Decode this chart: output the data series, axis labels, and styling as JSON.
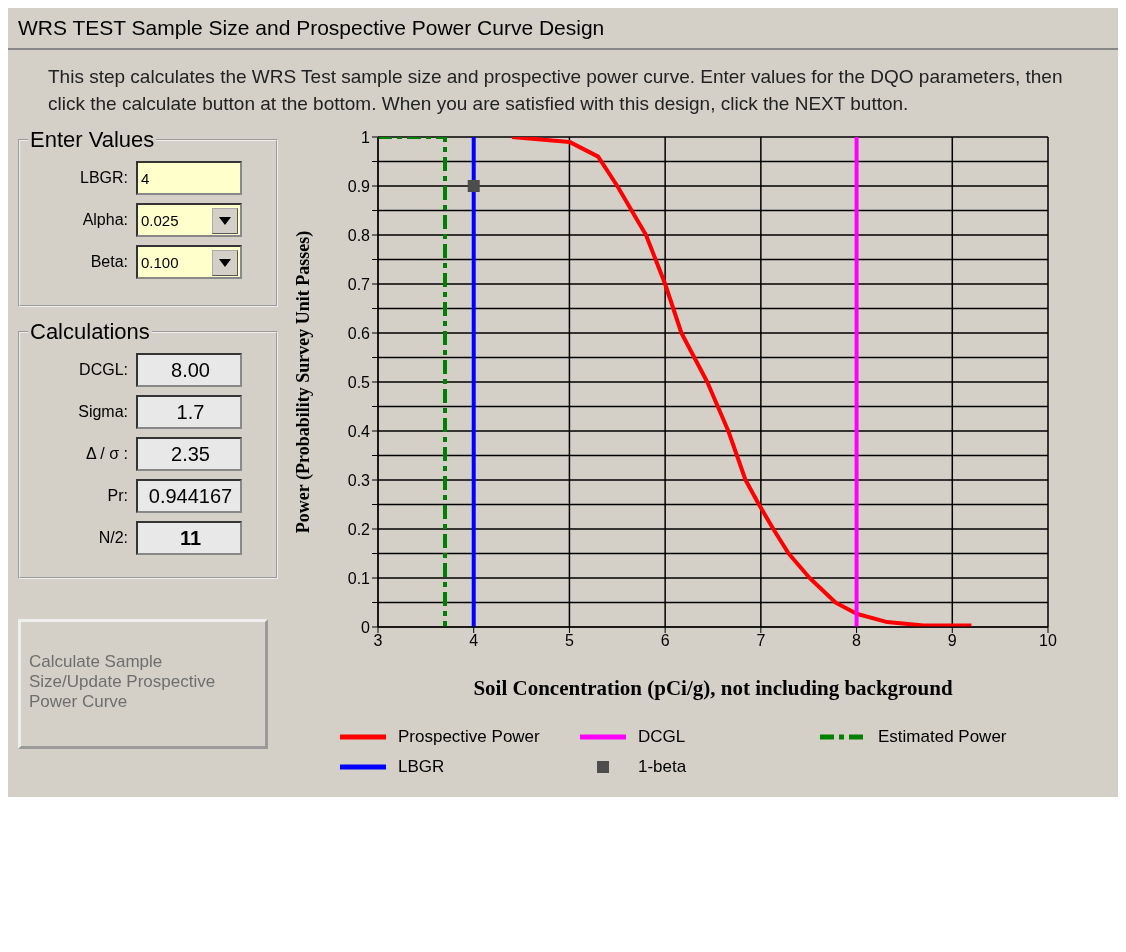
{
  "chart_data": [
    {
      "type": "other",
      "title": "WRS TEST Sample Size and Prospective Power Curve Design",
      "subtitle": "This step calculates the WRS Test sample size and prospective power curve. Enter values for the DQO parameters, then click the calculate button at the bottom. When you are satisfied with this design, click the NEXT button.",
      "annotations": [
        "Enter Values",
        "LBGR:",
        "4",
        "Alpha:",
        "0.025",
        "Beta:",
        "0.100",
        "Calculations",
        "DCGL:",
        "8.00",
        "Sigma:",
        "1.7",
        "Δ / σ :",
        "2.35",
        "Pr:",
        "0.944167",
        "N/2:",
        "11",
        "Calculate Sample Size/Update Prospective Power Curve"
      ]
    },
    {
      "type": "line",
      "xlabel": "Soil Concentration (pCi/g), not including background",
      "ylabel": "Power (Probability Survey Unit Passes)",
      "xlim": [
        3,
        10
      ],
      "xticks": [
        3,
        4,
        5,
        6,
        7,
        8,
        9,
        10
      ],
      "ylim": [
        0,
        1
      ],
      "yticks": [
        0,
        {
          "value": 0.05,
          "label": null
        },
        0.1,
        {
          "value": 0.15,
          "label": null
        },
        0.2,
        {
          "value": 0.25,
          "label": null
        },
        0.3,
        {
          "value": 0.35,
          "label": null
        },
        0.4,
        {
          "value": 0.45,
          "label": null
        },
        0.5,
        {
          "value": 0.55,
          "label": null
        },
        0.6,
        {
          "value": 0.65,
          "label": null
        },
        0.7,
        {
          "value": 0.75,
          "label": null
        },
        0.8,
        {
          "value": 0.85,
          "label": null
        },
        0.9,
        {
          "value": 0.95,
          "label": null
        },
        1
      ],
      "grid": true,
      "legend": "bottom",
      "series": [
        {
          "name": "Prospective Power",
          "color": "#ff0000",
          "x": [
            4.4,
            5,
            5.3,
            5.5,
            5.8,
            6,
            6.17,
            6.44,
            6.66,
            6.84,
            6.98,
            7.13,
            7.29,
            7.51,
            7.78,
            8,
            8.32,
            8.7,
            9.2
          ],
          "values": [
            1,
            0.99,
            0.96,
            0.9,
            0.8,
            0.7,
            0.6,
            0.5,
            0.4,
            0.3,
            0.25,
            0.2,
            0.15,
            0.1,
            0.05,
            0.027,
            0.01,
            0.003,
            0.003
          ]
        },
        {
          "name": "DCGL",
          "color": "#ff00ff",
          "x": [
            8,
            8
          ],
          "values": [
            0,
            1
          ]
        },
        {
          "name": "Estimated Power",
          "color": "#008000",
          "line_style": "dashed",
          "x": [
            3,
            3.7,
            3.7
          ],
          "values": [
            1,
            1,
            0
          ]
        },
        {
          "name": "LBGR",
          "color": "#0000ff",
          "x": [
            4,
            4
          ],
          "values": [
            0,
            1
          ]
        },
        {
          "name": "1-beta",
          "type": "scatter",
          "marker": "square",
          "color": "#4d4d4d",
          "x": [
            4
          ],
          "values": [
            0.9
          ]
        }
      ]
    }
  ]
}
